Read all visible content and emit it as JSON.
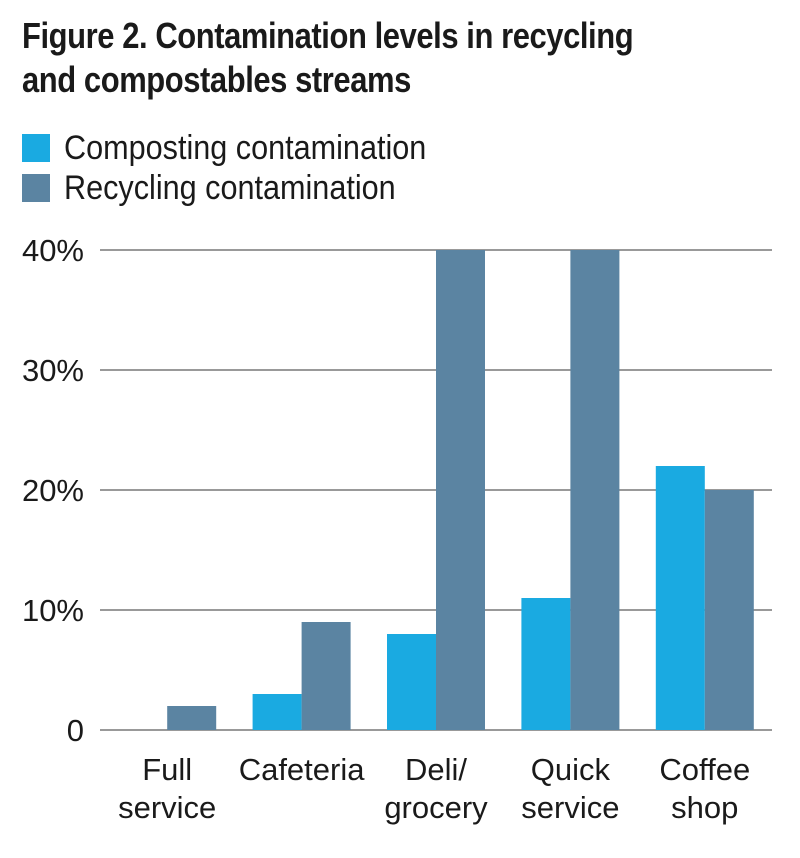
{
  "title_lines": [
    "Figure 2. Contamination levels in recycling",
    "and compostables streams"
  ],
  "colors": {
    "composting": "#1aaae1",
    "recycling": "#5b84a2",
    "grid": "#333333",
    "text": "#1a1a1a"
  },
  "chart_data": {
    "type": "bar",
    "title": "Figure 2. Contamination levels in recycling and compostables streams",
    "categories": [
      [
        "Full",
        "service"
      ],
      [
        "Cafeteria"
      ],
      [
        "Deli/",
        "grocery"
      ],
      [
        "Quick",
        "service"
      ],
      [
        "Coffee",
        "shop"
      ]
    ],
    "series": [
      {
        "name": "Composting contamination",
        "values": [
          0,
          3,
          8,
          11,
          22
        ]
      },
      {
        "name": "Recycling contamination",
        "values": [
          2,
          9,
          40,
          40,
          20
        ]
      }
    ],
    "ylim": [
      0,
      40
    ],
    "yticks": [
      0,
      10,
      20,
      30,
      40
    ],
    "ytick_labels": [
      "0",
      "10%",
      "20%",
      "30%",
      "40%"
    ],
    "grid": true,
    "legend_position": "top-left"
  }
}
